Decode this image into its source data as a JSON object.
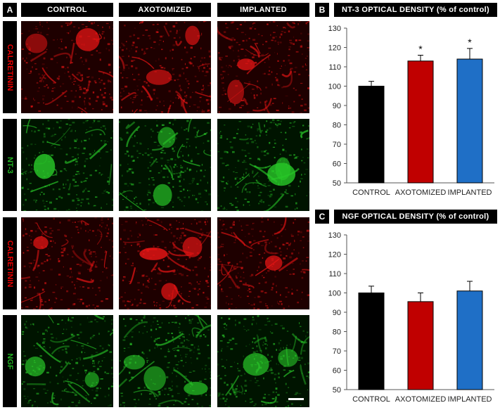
{
  "figure": {
    "panel_a_letter": "A",
    "panel_b_letter": "B",
    "panel_c_letter": "C",
    "columns": [
      "CONTROL",
      "AXOTOMIZED",
      "IMPLANTED"
    ],
    "rows": [
      {
        "label": "CALRETININ",
        "color": "#e60000",
        "channel": "red"
      },
      {
        "label": "NT-3",
        "color": "#22b322",
        "channel": "green"
      },
      {
        "label": "CALRETININ",
        "color": "#e60000",
        "channel": "red"
      },
      {
        "label": "NGF",
        "color": "#22b322",
        "channel": "green"
      }
    ],
    "scale_bar_present": true
  },
  "chart_data": [
    {
      "type": "bar",
      "title": "NT-3 OPTICAL DENSITY (% of control)",
      "categories": [
        "CONTROL",
        "AXOTOMIZED",
        "IMPLANTED"
      ],
      "values": [
        100,
        113,
        114
      ],
      "errors": [
        2.5,
        3,
        5.5
      ],
      "significance": [
        "",
        "*",
        "*"
      ],
      "colors": [
        "#000000",
        "#c00000",
        "#1f6fc6"
      ],
      "ylim": [
        50,
        130
      ],
      "yticks": [
        50,
        60,
        70,
        80,
        90,
        100,
        110,
        120,
        130
      ]
    },
    {
      "type": "bar",
      "title": "NGF OPTICAL DENSITY (% of control)",
      "categories": [
        "CONTROL",
        "AXOTOMIZED",
        "IMPLANTED"
      ],
      "values": [
        100,
        95.5,
        101
      ],
      "errors": [
        3.5,
        4.5,
        5
      ],
      "significance": [
        "",
        "",
        ""
      ],
      "colors": [
        "#000000",
        "#c00000",
        "#1f6fc6"
      ],
      "ylim": [
        50,
        130
      ],
      "yticks": [
        50,
        60,
        70,
        80,
        90,
        100,
        110,
        120,
        130
      ]
    }
  ]
}
